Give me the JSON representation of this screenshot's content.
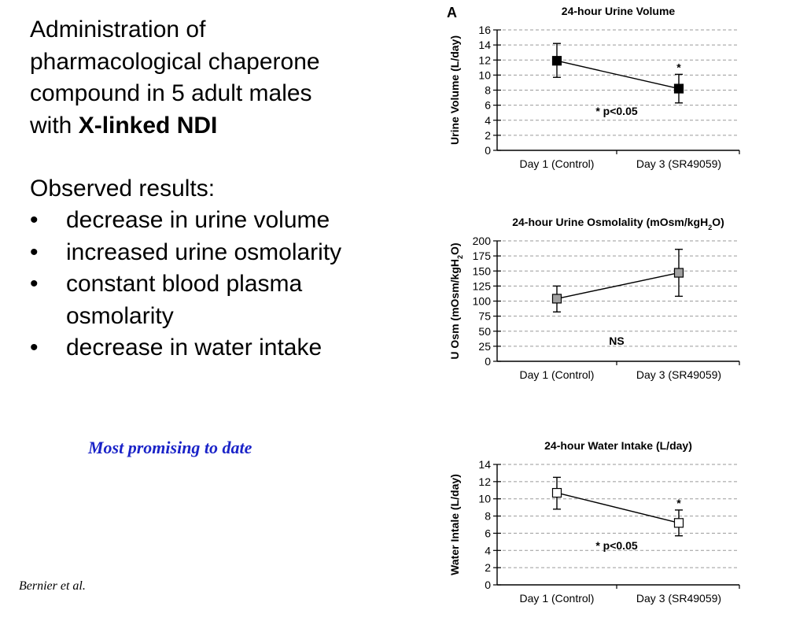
{
  "heading": {
    "line1": "Administration of",
    "line2": "pharmacological chaperone",
    "line3": "compound in 5 adult males",
    "line4_prefix": "with ",
    "line4_bold": "X-linked NDI"
  },
  "results": {
    "title": "Observed results:",
    "items": [
      {
        "bullet": "•",
        "text": "decrease in urine volume"
      },
      {
        "bullet": "•",
        "text": "increased urine osmolarity"
      },
      {
        "bullet": "•",
        "text": "constant blood plasma osmolarity"
      },
      {
        "bullet": "•",
        "text": "decrease in water intake"
      }
    ]
  },
  "note": "Most promising to date",
  "citation": "Bernier et al.",
  "chart_data": [
    {
      "type": "line",
      "panel_label": "A",
      "title": "24-hour Urine Volume",
      "ylabel": "Urine Volume (L/day)",
      "xlabel": "",
      "categories": [
        "Day 1 (Control)",
        "Day 3 (SR49059)"
      ],
      "values": [
        11.9,
        8.2
      ],
      "error_low": [
        9.7,
        6.3
      ],
      "error_high": [
        14.2,
        10.1
      ],
      "ylim": [
        0,
        16
      ],
      "yticks": [
        0,
        2,
        4,
        6,
        8,
        10,
        12,
        14,
        16
      ],
      "grid": true,
      "marker_fill": "#000000",
      "significance_markers": [
        "",
        "*"
      ],
      "annotation": "* p<0.05"
    },
    {
      "type": "line",
      "title": "24-hour Urine Osmolality (mOsm/kgH",
      "title_sub": "2",
      "title_end": "O)",
      "ylabel": "U Osm (mOsm/kgH",
      "ylabel_sub": "2",
      "ylabel_end": "O)",
      "xlabel": "",
      "categories": [
        "Day 1 (Control)",
        "Day 3 (SR49059)"
      ],
      "values": [
        104,
        147
      ],
      "error_low": [
        82,
        108
      ],
      "error_high": [
        125,
        186
      ],
      "ylim": [
        0,
        200
      ],
      "yticks": [
        0,
        25,
        50,
        75,
        100,
        125,
        150,
        175,
        200
      ],
      "grid": true,
      "marker_fill": "#a0a0a0",
      "significance_markers": [
        "",
        ""
      ],
      "annotation": "NS"
    },
    {
      "type": "line",
      "title": "24-hour Water Intake (L/day)",
      "ylabel": "Water Intale (L/day)",
      "xlabel": "",
      "categories": [
        "Day 1 (Control)",
        "Day 3 (SR49059)"
      ],
      "values": [
        10.7,
        7.2
      ],
      "error_low": [
        8.8,
        5.7
      ],
      "error_high": [
        12.5,
        8.7
      ],
      "ylim": [
        0,
        14
      ],
      "yticks": [
        0,
        2,
        4,
        6,
        8,
        10,
        12,
        14
      ],
      "grid": true,
      "marker_fill": "#ffffff",
      "significance_markers": [
        "",
        "*"
      ],
      "annotation": "* p<0.05"
    }
  ]
}
